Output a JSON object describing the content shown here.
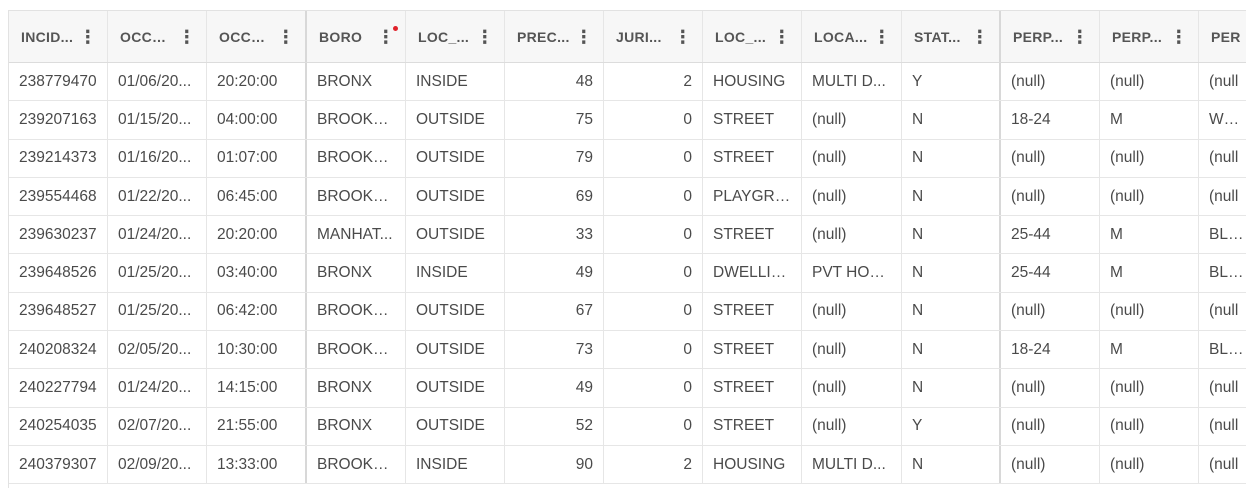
{
  "columns": [
    {
      "label": "INCID..."
    },
    {
      "label": "OCCU..."
    },
    {
      "label": "OCCU..."
    },
    {
      "label": "BORO"
    },
    {
      "label": "LOC_..."
    },
    {
      "label": "PREC..."
    },
    {
      "label": "JURI..."
    },
    {
      "label": "LOC_..."
    },
    {
      "label": "LOCA..."
    },
    {
      "label": "STAT..."
    },
    {
      "label": "PERP..."
    },
    {
      "label": "PERP..."
    },
    {
      "label": "PER"
    }
  ],
  "rows": [
    [
      "238779470",
      "01/06/20...",
      "20:20:00",
      "BRONX",
      "INSIDE",
      "48",
      "2",
      "HOUSING",
      "MULTI D...",
      "Y",
      "(null)",
      "(null)",
      "(null"
    ],
    [
      "239207163",
      "01/15/20...",
      "04:00:00",
      "BROOKLYN",
      "OUTSIDE",
      "75",
      "0",
      "STREET",
      "(null)",
      "N",
      "18-24",
      "M",
      "WHIT"
    ],
    [
      "239214373",
      "01/16/20...",
      "01:07:00",
      "BROOKLYN",
      "OUTSIDE",
      "79",
      "0",
      "STREET",
      "(null)",
      "N",
      "(null)",
      "(null)",
      "(null"
    ],
    [
      "239554468",
      "01/22/20...",
      "06:45:00",
      "BROOKLYN",
      "OUTSIDE",
      "69",
      "0",
      "PLAYGRO...",
      "(null)",
      "N",
      "(null)",
      "(null)",
      "(null"
    ],
    [
      "239630237",
      "01/24/20...",
      "20:20:00",
      "MANHAT...",
      "OUTSIDE",
      "33",
      "0",
      "STREET",
      "(null)",
      "N",
      "25-44",
      "M",
      "BLAC"
    ],
    [
      "239648526",
      "01/25/20...",
      "03:40:00",
      "BRONX",
      "INSIDE",
      "49",
      "0",
      "DWELLING",
      "PVT HOU...",
      "N",
      "25-44",
      "M",
      "BLAC"
    ],
    [
      "239648527",
      "01/25/20...",
      "06:42:00",
      "BROOKLYN",
      "OUTSIDE",
      "67",
      "0",
      "STREET",
      "(null)",
      "N",
      "(null)",
      "(null)",
      "(null"
    ],
    [
      "240208324",
      "02/05/20...",
      "10:30:00",
      "BROOKLYN",
      "OUTSIDE",
      "73",
      "0",
      "STREET",
      "(null)",
      "N",
      "18-24",
      "M",
      "BLAC"
    ],
    [
      "240227794",
      "01/24/20...",
      "14:15:00",
      "BRONX",
      "OUTSIDE",
      "49",
      "0",
      "STREET",
      "(null)",
      "N",
      "(null)",
      "(null)",
      "(null"
    ],
    [
      "240254035",
      "02/07/20...",
      "21:55:00",
      "BRONX",
      "OUTSIDE",
      "52",
      "0",
      "STREET",
      "(null)",
      "Y",
      "(null)",
      "(null)",
      "(null"
    ],
    [
      "240379307",
      "02/09/20...",
      "13:33:00",
      "BROOKLYN",
      "INSIDE",
      "90",
      "2",
      "HOUSING",
      "MULTI D...",
      "N",
      "(null)",
      "(null)",
      "(null"
    ]
  ],
  "header_menu_icon": "kebab-menu-icon",
  "sort_indicator_color": "#e0222b",
  "menu_glyph": "⋮"
}
